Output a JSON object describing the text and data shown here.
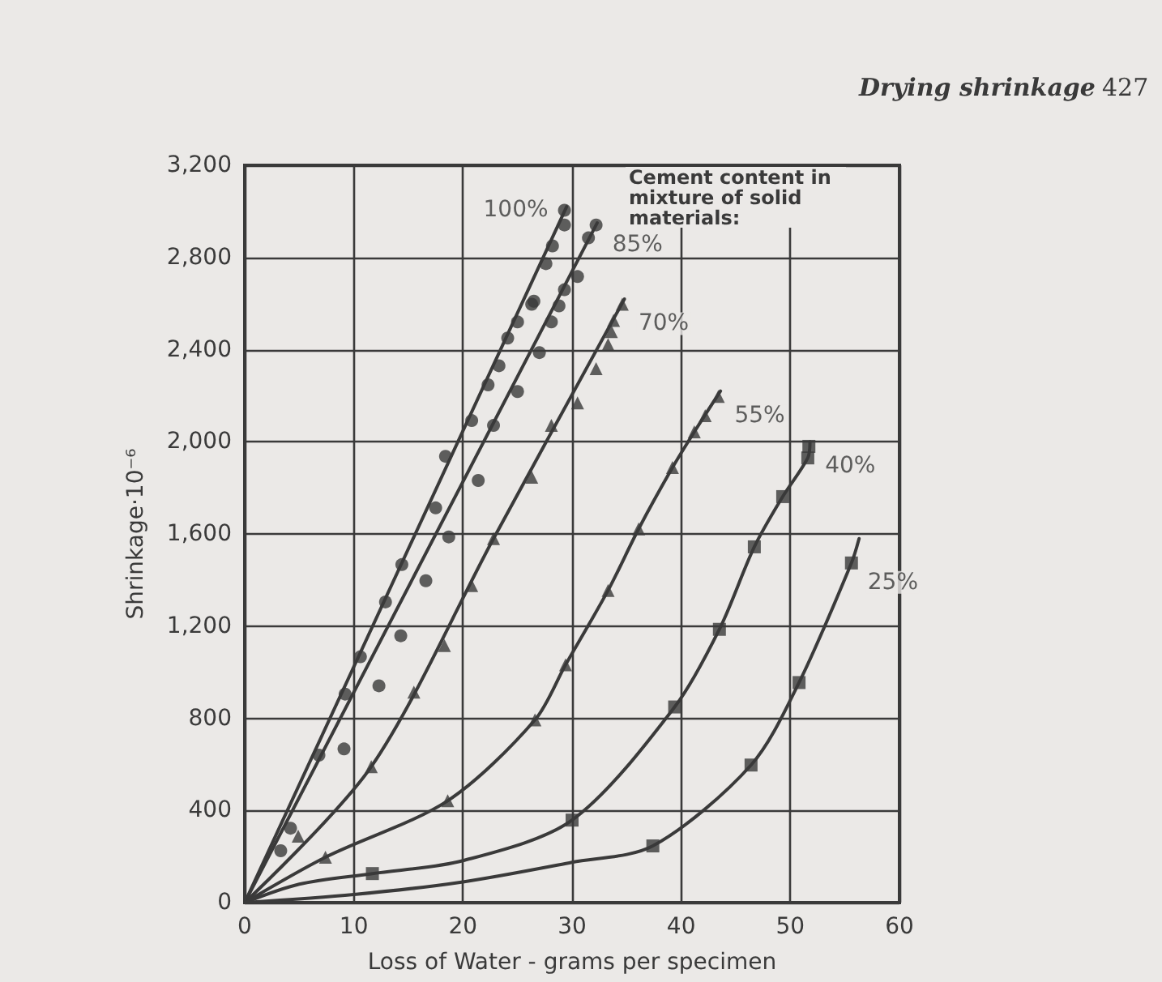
{
  "chart_data": {
    "type": "scatter",
    "xlabel": "Loss of Water - grams per specimen",
    "ylabel": "Shrinkage·10⁻⁶",
    "annotations": [
      "Cement content in mixture of solid materials:",
      "Drying shrinkage",
      "427"
    ],
    "xlim": [
      0,
      60
    ],
    "xticks": [
      0,
      10,
      20,
      30,
      40,
      50,
      60
    ],
    "ylim": [
      0,
      3200
    ],
    "yticks": [
      0,
      400,
      800,
      {
        "value": 1200,
        "label": "1,200"
      },
      {
        "value": 1600,
        "label": "1,600"
      },
      {
        "value": 2000,
        "label": "2,000"
      },
      {
        "value": 2400,
        "label": "2,400"
      },
      {
        "value": 2800,
        "label": "2,800"
      },
      {
        "value": 3200,
        "label": "3,200"
      }
    ],
    "grid": true,
    "legend": false,
    "line_style": "solid",
    "series": [
      {
        "type": "line",
        "marker": "none",
        "color": "#3a3a3a",
        "x": [
          0,
          29.5
        ],
        "values": [
          0,
          3020
        ]
      },
      {
        "type": "line",
        "marker": "none",
        "color": "#3a3a3a",
        "x": [
          0,
          32.3
        ],
        "values": [
          0,
          2950
        ]
      },
      {
        "type": "line",
        "marker": "none",
        "color": "#3a3a3a",
        "x": [
          0,
          11.6,
          22.8,
          34.8
        ],
        "values": [
          0,
          590,
          1580,
          2620
        ]
      },
      {
        "type": "line",
        "marker": "none",
        "color": "#3a3a3a",
        "x": [
          0,
          7.4,
          18.6,
          26.6,
          29.4,
          33.3,
          36.1,
          39.2,
          41.2,
          43.6
        ],
        "values": [
          0,
          197,
          442,
          793,
          1032,
          1355,
          1622,
          1888,
          2043,
          2220
        ]
      },
      {
        "type": "line",
        "marker": "none",
        "color": "#3a3a3a",
        "x": [
          0,
          5,
          11.7,
          20,
          30,
          39.4,
          43.5,
          46.7,
          49.3,
          51.6,
          51.8
        ],
        "values": [
          0,
          80,
          126,
          182,
          358,
          849,
          1186,
          1544,
          1762,
          1930,
          2000
        ]
      },
      {
        "type": "line",
        "marker": "none",
        "color": "#3a3a3a",
        "x": [
          0,
          10,
          20,
          30,
          37.4,
          46.4,
          50.8,
          55.6,
          56.3
        ],
        "values": [
          0,
          35,
          90,
          175,
          246,
          597,
          955,
          1474,
          1580
        ]
      },
      {
        "name": "100%",
        "marker": "circle",
        "color": "#3a3a3a",
        "x": [
          3.3,
          6.8,
          9.2,
          10.6,
          12.9,
          14.4,
          17.5,
          18.4,
          20.8,
          22.3,
          23.3,
          24.1,
          25.0,
          26.3,
          26.5,
          27.6,
          28.2,
          29.3,
          29.3
        ],
        "values": [
          225,
          640,
          905,
          1067,
          1305,
          1467,
          1713,
          1937,
          2092,
          2247,
          2330,
          2450,
          2520,
          2597,
          2610,
          2773,
          2850,
          2941,
          3005
        ]
      },
      {
        "name": "85%",
        "marker": "circle",
        "color": "#3a3a3a",
        "x": [
          4.2,
          9.1,
          12.3,
          14.3,
          16.6,
          18.7,
          21.4,
          22.8,
          25.0,
          27.0,
          28.1,
          28.8,
          29.3,
          30.5,
          31.5,
          32.2
        ],
        "values": [
          323,
          667,
          941,
          1158,
          1397,
          1587,
          1832,
          2071,
          2218,
          2387,
          2520,
          2590,
          2660,
          2717,
          2885,
          2941
        ]
      },
      {
        "name": "70%",
        "marker": "triangle",
        "color": "#3a3a3a",
        "x": [
          4.9,
          11.6,
          15.5,
          18.3,
          20.8,
          22.8,
          26.3,
          28.1,
          30.5,
          32.2,
          33.3,
          33.6,
          33.8,
          34.6
        ],
        "values": [
          288,
          590,
          913,
          1116,
          1376,
          1580,
          1846,
          2071,
          2169,
          2317,
          2422,
          2478,
          2527,
          2597
        ]
      },
      {
        "name": "55%",
        "marker": "triangle",
        "color": "#3a3a3a",
        "x": [
          7.4,
          18.6,
          26.6,
          29.4,
          33.3,
          36.1,
          39.2,
          41.2,
          42.2,
          43.4
        ],
        "values": [
          197,
          442,
          793,
          1032,
          1355,
          1622,
          1888,
          2043,
          2113,
          2197
        ]
      },
      {
        "name": "40%",
        "marker": "square",
        "color": "#3a3a3a",
        "x": [
          11.7,
          30.0,
          39.4,
          43.5,
          46.7,
          49.3,
          51.6,
          51.7
        ],
        "values": [
          126,
          358,
          849,
          1186,
          1544,
          1762,
          1930,
          1980
        ]
      },
      {
        "name": "25%",
        "marker": "square",
        "color": "#3a3a3a",
        "x": [
          37.4,
          46.4,
          50.8,
          55.6
        ],
        "values": [
          246,
          597,
          955,
          1474
        ]
      }
    ]
  }
}
